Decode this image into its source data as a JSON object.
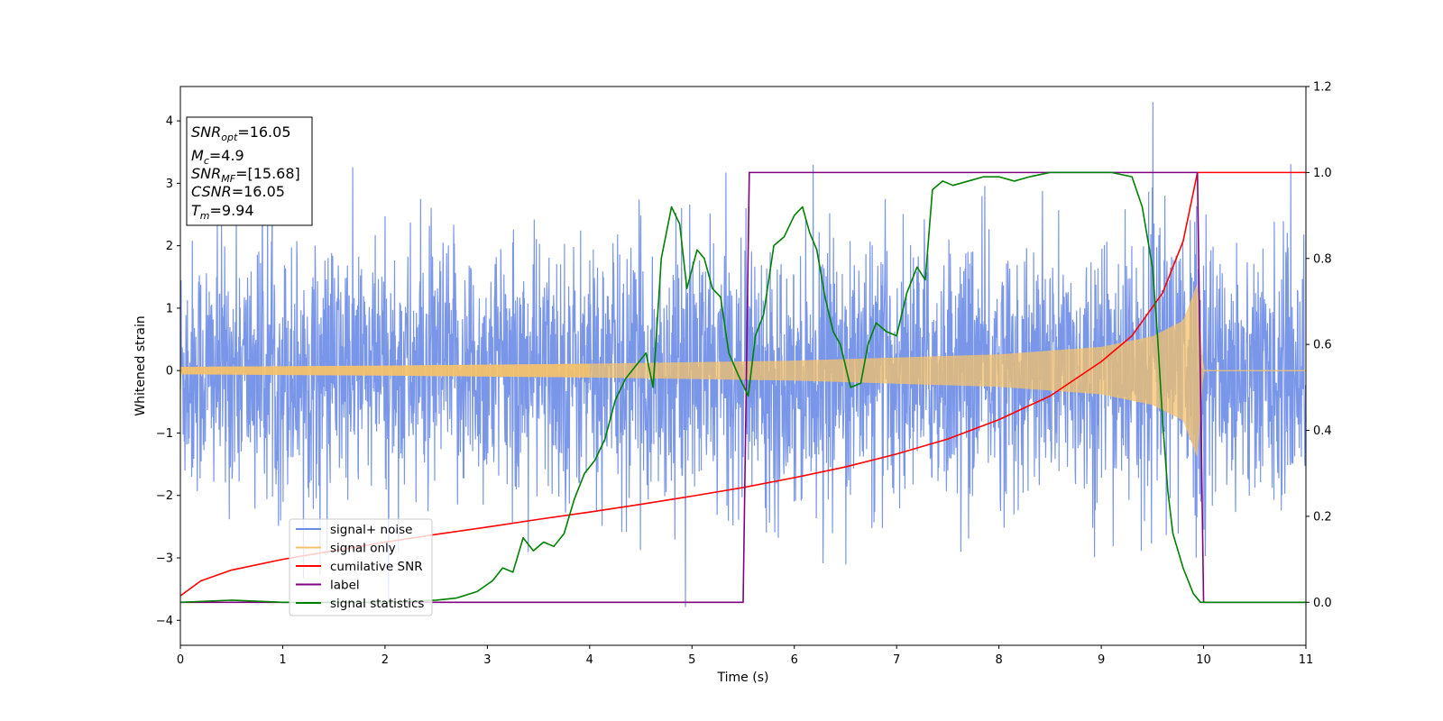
{
  "chart_data": {
    "type": "line",
    "xlabel": "Time (s)",
    "ylabel": "Whitened strain",
    "xlim": [
      0,
      11
    ],
    "ylim_left": [
      -4.4,
      4.55
    ],
    "ylim_right": [
      -0.1,
      1.2
    ],
    "xticks": [
      "0",
      "1",
      "2",
      "3",
      "4",
      "5",
      "6",
      "7",
      "8",
      "9",
      "10",
      "11"
    ],
    "yticks_left": [
      "−4",
      "−3",
      "−2",
      "−1",
      "0",
      "1",
      "2",
      "3",
      "4"
    ],
    "yticks_right": [
      "0.0",
      "0.2",
      "0.4",
      "0.6",
      "0.8",
      "1.0",
      "1.2"
    ],
    "annotation": {
      "snr_opt": {
        "base": "SNR",
        "sub": "opt",
        "value": "=16.05"
      },
      "mc": {
        "base": "M",
        "sub": "c",
        "value": "=4.9"
      },
      "snr_mf": {
        "base": "SNR",
        "sub": "MF",
        "value": "=[15.68]"
      },
      "csnr": {
        "base": "CSNR",
        "value": "=16.05"
      },
      "tm": {
        "base": "T",
        "sub": "m",
        "value": "=9.94"
      }
    },
    "legend": {
      "placement": "lower-left",
      "entries": [
        {
          "name": "signal+ noise",
          "color": "#6b8be6"
        },
        {
          "name": "signal only",
          "color": "#f5c26b"
        },
        {
          "name": "cumilative SNR",
          "color": "#ff0000"
        },
        {
          "name": "label",
          "color": "#800080"
        },
        {
          "name": "signal statistics",
          "color": "#008000"
        }
      ]
    },
    "series": [
      {
        "name": "signal+ noise",
        "axis": "left",
        "color": "#6b8be6",
        "description_of_data": "white gaussian noise plus chirp, std about 1.0",
        "noise_std": 1.0
      },
      {
        "name": "signal only",
        "axis": "left",
        "color": "#f5c26b",
        "envelope": {
          "t": [
            0,
            2,
            4,
            6,
            8,
            9,
            9.5,
            9.8,
            9.94,
            10,
            11
          ],
          "amp": [
            0.06,
            0.08,
            0.11,
            0.16,
            0.26,
            0.38,
            0.55,
            0.8,
            1.4,
            0,
            0
          ]
        }
      },
      {
        "name": "cumilative SNR",
        "axis": "right",
        "color": "#ff0000",
        "x": [
          0,
          0.2,
          0.5,
          1,
          1.5,
          2,
          2.5,
          3,
          3.5,
          4,
          4.5,
          5,
          5.5,
          6,
          6.5,
          7,
          7.5,
          8,
          8.5,
          9,
          9.3,
          9.6,
          9.8,
          9.94,
          10,
          11
        ],
        "y": [
          0.015,
          0.05,
          0.075,
          0.1,
          0.12,
          0.14,
          0.158,
          0.175,
          0.193,
          0.21,
          0.228,
          0.247,
          0.267,
          0.29,
          0.315,
          0.345,
          0.38,
          0.425,
          0.48,
          0.56,
          0.62,
          0.72,
          0.84,
          1.0,
          1.0,
          1.0
        ]
      },
      {
        "name": "label",
        "axis": "right",
        "color": "#800080",
        "x": [
          0,
          5.5,
          5.56,
          9.94,
          10.0,
          11
        ],
        "y": [
          0,
          0,
          1,
          1,
          0,
          0
        ]
      },
      {
        "name": "signal statistics",
        "axis": "right",
        "color": "#008000",
        "x": [
          0,
          0.5,
          1,
          1.5,
          2,
          2.5,
          2.7,
          2.9,
          3.05,
          3.15,
          3.25,
          3.35,
          3.45,
          3.55,
          3.65,
          3.75,
          3.85,
          3.95,
          4.05,
          4.15,
          4.25,
          4.35,
          4.45,
          4.55,
          4.62,
          4.7,
          4.8,
          4.88,
          4.95,
          5.05,
          5.12,
          5.2,
          5.28,
          5.36,
          5.45,
          5.55,
          5.62,
          5.7,
          5.8,
          5.9,
          6.0,
          6.08,
          6.15,
          6.22,
          6.3,
          6.38,
          6.45,
          6.55,
          6.65,
          6.72,
          6.8,
          6.9,
          7.0,
          7.1,
          7.2,
          7.28,
          7.35,
          7.45,
          7.55,
          7.7,
          7.85,
          8.0,
          8.15,
          8.3,
          8.5,
          8.7,
          8.9,
          9.1,
          9.3,
          9.4,
          9.5,
          9.55,
          9.6,
          9.65,
          9.7,
          9.8,
          9.9,
          9.97,
          10.0,
          11
        ],
        "y": [
          0,
          0.005,
          0.0,
          0.0,
          0.0,
          0.005,
          0.01,
          0.025,
          0.05,
          0.08,
          0.07,
          0.15,
          0.12,
          0.14,
          0.13,
          0.16,
          0.24,
          0.3,
          0.33,
          0.38,
          0.47,
          0.52,
          0.55,
          0.58,
          0.5,
          0.8,
          0.92,
          0.88,
          0.73,
          0.82,
          0.8,
          0.73,
          0.71,
          0.58,
          0.53,
          0.48,
          0.62,
          0.67,
          0.83,
          0.85,
          0.9,
          0.92,
          0.86,
          0.82,
          0.71,
          0.63,
          0.6,
          0.5,
          0.51,
          0.6,
          0.65,
          0.63,
          0.62,
          0.72,
          0.78,
          0.75,
          0.96,
          0.98,
          0.97,
          0.98,
          0.99,
          0.99,
          0.98,
          0.99,
          1.0,
          1.0,
          1.0,
          1.0,
          0.99,
          0.92,
          0.78,
          0.62,
          0.42,
          0.26,
          0.16,
          0.08,
          0.02,
          0.0,
          0.0,
          0.0
        ]
      }
    ]
  }
}
